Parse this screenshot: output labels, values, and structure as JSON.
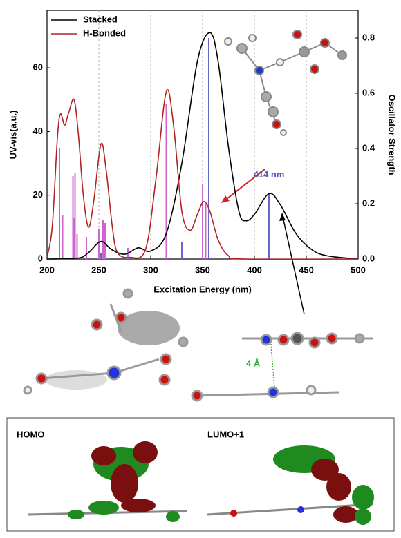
{
  "chart_data": {
    "type": "line",
    "xlabel": "Excitation Energy (nm)",
    "ylabel": "UV-vis(a.u.)",
    "y2label": "Oscillator Strength",
    "xlim": [
      200,
      500
    ],
    "xticks": [
      200,
      250,
      300,
      350,
      400,
      450,
      500
    ],
    "ylim": [
      0,
      78
    ],
    "yticks": [
      0,
      20,
      40,
      60
    ],
    "y2lim": [
      0,
      0.9
    ],
    "y2ticks": [
      {
        "value": 0,
        "label": "0.0"
      },
      0.2,
      0.4,
      0.6,
      0.8
    ],
    "grid": true,
    "legend": "upper left",
    "series": [
      {
        "name": "Stacked",
        "color": "#000000",
        "x": [
          200,
          230,
          240,
          252,
          262,
          275,
          288,
          300,
          315,
          330,
          345,
          357,
          365,
          375,
          385,
          392,
          400,
          414,
          425,
          440,
          455,
          470,
          500
        ],
        "values": [
          0,
          0.3,
          2,
          5.5,
          3,
          1.5,
          3.5,
          2.5,
          8,
          30,
          62,
          71,
          62,
          35,
          15,
          12,
          14,
          20.5,
          17,
          8,
          3,
          1,
          0
        ]
      },
      {
        "name": "H-Bonded",
        "color": "#b22222",
        "x": [
          200,
          205,
          210,
          213,
          217,
          221,
          226,
          230,
          235,
          240,
          245,
          252,
          257,
          263,
          268,
          280,
          295,
          305,
          315,
          322,
          330,
          338,
          345,
          351,
          357,
          365,
          375,
          390,
          500
        ],
        "values": [
          0.5,
          10,
          38,
          45.5,
          42,
          46,
          50,
          40,
          20,
          10,
          18,
          36,
          28,
          10,
          2,
          0.5,
          3,
          25,
          52.5,
          42,
          15,
          9,
          14,
          18,
          15,
          6,
          1,
          0,
          0
        ]
      }
    ],
    "sticks": [
      {
        "color": "#cc66cc",
        "axis": "y2",
        "x": [
          212,
          215,
          225,
          226,
          227,
          229,
          238,
          250,
          254,
          256,
          278,
          315,
          350,
          353
        ],
        "values": [
          0.4,
          0.16,
          0.3,
          0.15,
          0.31,
          0.09,
          0.08,
          0.11,
          0.14,
          0.13,
          0.04,
          0.56,
          0.27,
          0.2
        ]
      },
      {
        "color": "#6666cc",
        "axis": "y2",
        "x": [
          252,
          330,
          356,
          414
        ],
        "values": [
          0.02,
          0.06,
          0.8,
          0.24
        ]
      }
    ],
    "annotations": [
      {
        "text": "414 nm",
        "x": 414,
        "y": 22,
        "color": "#5555bb"
      }
    ]
  },
  "figure": {
    "distance_label": "4 Å",
    "orbitals": [
      "HOMO",
      "LUMO+1"
    ]
  }
}
